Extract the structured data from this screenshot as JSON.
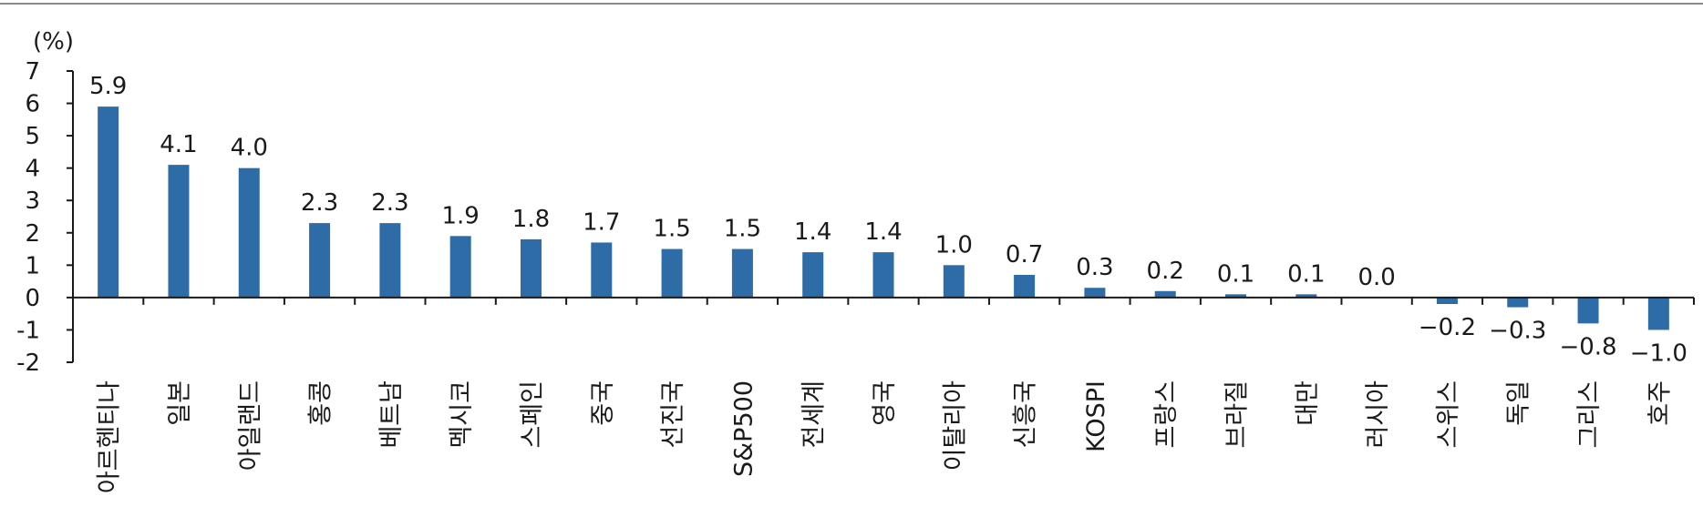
{
  "chart_data": {
    "type": "bar",
    "unit_label": "(%)",
    "categories": [
      "아르헨티나",
      "일본",
      "아일랜드",
      "홍콩",
      "베트남",
      "멕시코",
      "스페인",
      "중국",
      "선진국",
      "S&P500",
      "전세계",
      "영국",
      "이탈리아",
      "신흥국",
      "KOSPI",
      "프랑스",
      "브라질",
      "대만",
      "러시아",
      "스위스",
      "독일",
      "그리스",
      "호주"
    ],
    "values": [
      5.9,
      4.1,
      4.0,
      2.3,
      2.3,
      1.9,
      1.8,
      1.7,
      1.5,
      1.5,
      1.4,
      1.4,
      1.0,
      0.7,
      0.3,
      0.2,
      0.1,
      0.1,
      0.0,
      -0.2,
      -0.3,
      -0.8,
      -1.0
    ],
    "value_labels": [
      "5.9",
      "4.1",
      "4.0",
      "2.3",
      "2.3",
      "1.9",
      "1.8",
      "1.7",
      "1.5",
      "1.5",
      "1.4",
      "1.4",
      "1.0",
      "0.7",
      "0.3",
      "0.2",
      "0.1",
      "0.1",
      "0.0",
      "−0.2",
      "−0.3",
      "−0.8",
      "−1.0"
    ],
    "ylim": [
      -2,
      7
    ],
    "yticks": [
      -2,
      -1,
      0,
      1,
      2,
      3,
      4,
      5,
      6,
      7
    ],
    "ytick_labels": [
      "-2",
      "-1",
      "0",
      "1",
      "2",
      "3",
      "4",
      "5",
      "6",
      "7"
    ],
    "bar_color": "#2e6ca8",
    "grid": false,
    "legend": "none"
  }
}
